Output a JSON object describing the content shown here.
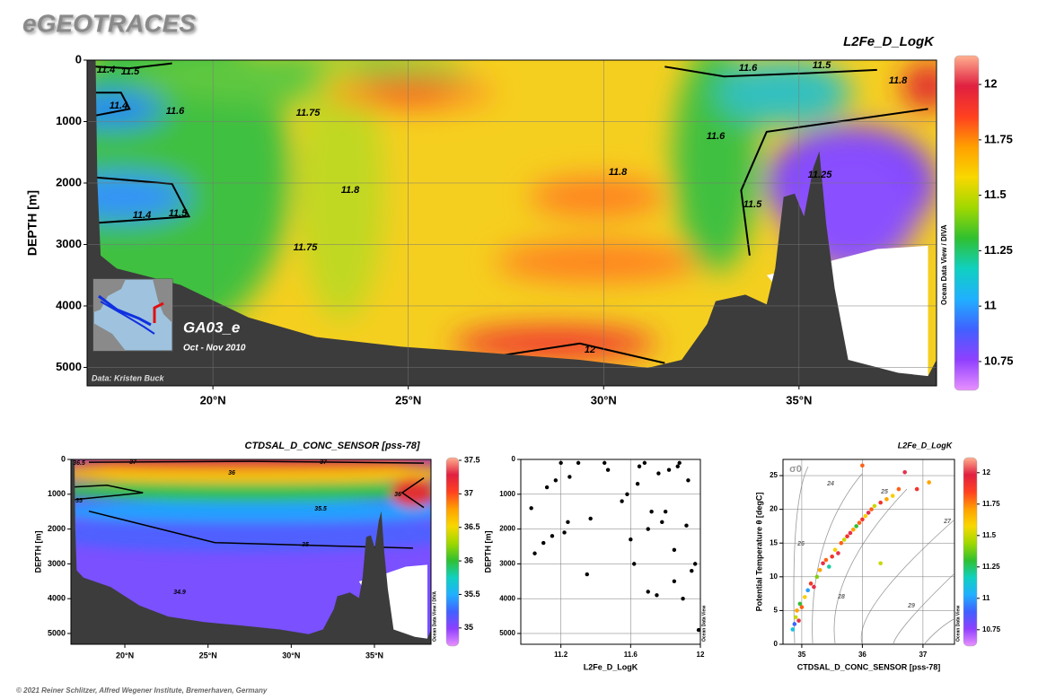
{
  "header": {
    "logo": "eGEOTRACES"
  },
  "footer": "© 2021 Reiner Schlitzer, Alfred Wegener Institute, Bremerhaven, Germany",
  "inset": {
    "cruise": "GA03_e",
    "dates": "Oct - Nov 2010",
    "credit": "Data: Kristen Buck"
  },
  "colormap": [
    "#e890ff",
    "#9040ff",
    "#4060ff",
    "#20b0ff",
    "#10d0c0",
    "#30c030",
    "#a0d800",
    "#f8d800",
    "#ffa000",
    "#ff4020",
    "#e02040",
    "#ffb090"
  ],
  "chart_data": [
    {
      "type": "section",
      "title": "L2Fe_D_LogK",
      "y_label": "DEPTH [m]",
      "watermark": "Ocean Data View / DIVA",
      "xlim": [
        16.78,
        38.52
      ],
      "xticks": [
        {
          "value": 20,
          "label": "20°N"
        },
        {
          "value": 25,
          "label": "25°N"
        },
        {
          "value": 30,
          "label": "30°N"
        },
        {
          "value": 35,
          "label": "35°N"
        }
      ],
      "ylim": [
        0,
        5300
      ],
      "y_inverted": true,
      "yticks": [
        0,
        1000,
        2000,
        3000,
        4000,
        5000
      ],
      "grid": true,
      "clim": [
        10.62,
        12.13
      ],
      "cticks": [
        10.75,
        11,
        11.25,
        11.5,
        11.75,
        12
      ],
      "contour_labels": [
        11.4,
        11.5,
        11.4,
        11.6,
        11.75,
        11.8,
        11.4,
        11.5,
        11.75,
        11.8,
        11.6,
        11.5,
        11.6,
        11.5,
        11.8,
        12,
        11.25
      ]
    },
    {
      "type": "section",
      "title": "CTDSAL_D_CONC_SENSOR [pss-78]",
      "y_label": "DEPTH [m]",
      "watermark": "Ocean Data View / DIVA",
      "xlim": [
        16.76,
        38.4
      ],
      "xticks": [
        {
          "value": 20,
          "label": "20°N"
        },
        {
          "value": 25,
          "label": "25°N"
        },
        {
          "value": 30,
          "label": "30°N"
        },
        {
          "value": 35,
          "label": "35°N"
        }
      ],
      "ylim": [
        0,
        5310
      ],
      "y_inverted": true,
      "yticks": [
        0,
        1000,
        2000,
        3000,
        4000,
        5000
      ],
      "grid": false,
      "clim": [
        34.73,
        37.54
      ],
      "cticks": [
        35,
        35.5,
        36,
        36.5,
        37,
        37.5
      ],
      "contour_labels": [
        36.5,
        37,
        37,
        36,
        35,
        35.5,
        35,
        36,
        34.9
      ]
    },
    {
      "type": "scatter",
      "x_label": "L2Fe_D_LogK",
      "y_label": "DEPTH [m]",
      "watermark": "Ocean Data View",
      "xlim": [
        10.97,
        12
      ],
      "xticks": [
        11.2,
        11.6,
        12
      ],
      "ylim": [
        0,
        5310
      ],
      "y_inverted": true,
      "yticks": [
        0,
        1000,
        2000,
        3000,
        4000,
        5000
      ],
      "grid": true,
      "color": "#000000",
      "x": [
        11.03,
        11.05,
        11.1,
        11.12,
        11.15,
        11.17,
        11.2,
        11.22,
        11.24,
        11.25,
        11.3,
        11.35,
        11.37,
        11.45,
        11.47,
        11.55,
        11.58,
        11.6,
        11.62,
        11.65,
        11.68,
        11.7,
        11.72,
        11.75,
        11.78,
        11.8,
        11.82,
        11.85,
        11.87,
        11.9,
        11.92,
        11.95,
        11.97,
        11.99,
        11.93,
        11.76,
        11.88,
        11.64,
        11.7,
        11.85
      ],
      "values": [
        1400,
        2700,
        2400,
        800,
        2200,
        600,
        100,
        2100,
        1800,
        500,
        100,
        3300,
        1700,
        100,
        300,
        1200,
        1000,
        2300,
        3000,
        200,
        100,
        3800,
        1500,
        3900,
        1800,
        1500,
        300,
        3500,
        200,
        4000,
        1900,
        3200,
        3000,
        4900,
        600,
        400,
        100,
        700,
        2000,
        2600
      ]
    },
    {
      "type": "scatter",
      "title": "L2Fe_D_LogK",
      "x_label": "CTDSAL_D_CONC_SENSOR [pss-78]",
      "y_label": "Potential Temperature θ [degC]",
      "watermark": "Ocean Data View",
      "xlim": [
        34.69,
        37.52
      ],
      "xticks": [
        35,
        36,
        37
      ],
      "ylim": [
        0,
        27.4
      ],
      "y_inverted": false,
      "yticks": [
        0,
        5,
        10,
        15,
        20,
        25
      ],
      "grid": true,
      "clim": [
        10.62,
        12.12
      ],
      "cticks": [
        10.75,
        11,
        11.25,
        11.5,
        11.75,
        12
      ],
      "contour_title": "σ0",
      "contour_labels": [
        24,
        25,
        26,
        27,
        28,
        29
      ],
      "x": [
        34.85,
        34.88,
        34.9,
        34.92,
        34.95,
        34.97,
        35.0,
        35.05,
        35.1,
        35.15,
        35.2,
        35.25,
        35.3,
        35.35,
        35.4,
        35.45,
        35.5,
        35.55,
        35.6,
        35.65,
        35.7,
        35.75,
        35.8,
        35.85,
        35.9,
        35.95,
        36.0,
        36.05,
        36.1,
        36.15,
        36.2,
        36.3,
        36.4,
        36.5,
        36.6,
        36.7,
        36.9,
        37.1,
        36.3,
        36.0
      ],
      "values": [
        2.2,
        3,
        4,
        5,
        3.5,
        6,
        5.5,
        7,
        8,
        9,
        8.5,
        10,
        11,
        12,
        12.5,
        11.5,
        13,
        14,
        13.5,
        15,
        15.5,
        16,
        16.5,
        17,
        17.5,
        18,
        18.5,
        19,
        19.5,
        20,
        20.5,
        21,
        21.5,
        22,
        23,
        25.5,
        23,
        24,
        12,
        26.5
      ],
      "colors": [
        11.1,
        10.9,
        11.5,
        11.7,
        12,
        11.3,
        11.8,
        11.6,
        11.0,
        11.9,
        12,
        11.4,
        11.7,
        12,
        11.8,
        11.2,
        11.9,
        11.6,
        12,
        11.8,
        11.5,
        11.9,
        12,
        11.7,
        11.3,
        11.8,
        11.9,
        11.6,
        12,
        11.8,
        11.5,
        11.9,
        11.7,
        11.6,
        11.8,
        12,
        11.9,
        11.7,
        11.5,
        11.8
      ]
    }
  ]
}
